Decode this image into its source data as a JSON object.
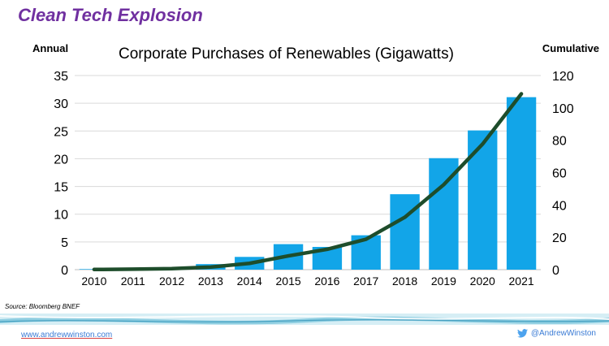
{
  "slide": {
    "title": "Clean Tech Explosion",
    "source": "Source: Bloomberg BNEF",
    "footer_link": "www.andrewwinston.com",
    "footer_twitter": "@AndrewWinston"
  },
  "colors": {
    "title": "#7030a0",
    "bar": "#12a5e8",
    "line": "#1e4d2b",
    "link": "#3a7bd5"
  },
  "icons": {
    "twitter": "twitter-bird-icon"
  },
  "chart_data": {
    "type": "bar",
    "title": "Corporate Purchases of Renewables (Gigawatts)",
    "ylabel": "Annual",
    "y2label": "Cumulative",
    "categories": [
      "2010",
      "2011",
      "2012",
      "2013",
      "2014",
      "2015",
      "2016",
      "2017",
      "2018",
      "2019",
      "2020",
      "2021"
    ],
    "series": [
      {
        "type": "bar",
        "axis": "left",
        "values": [
          0.1,
          0.2,
          0.3,
          1.0,
          2.3,
          4.6,
          4.1,
          6.2,
          13.6,
          20.1,
          25.1,
          31.1
        ]
      },
      {
        "type": "line",
        "axis": "right",
        "values": [
          0.1,
          0.3,
          0.6,
          1.6,
          3.9,
          8.5,
          12.6,
          18.8,
          32.4,
          52.5,
          77.6,
          108.7
        ]
      }
    ],
    "ylim": [
      0,
      35
    ],
    "yticks": [
      0,
      5,
      10,
      15,
      20,
      25,
      30,
      35
    ],
    "y2lim": [
      0,
      120
    ],
    "y2ticks": [
      0,
      20,
      40,
      60,
      80,
      100,
      120
    ],
    "grid": true,
    "legend": "none"
  }
}
